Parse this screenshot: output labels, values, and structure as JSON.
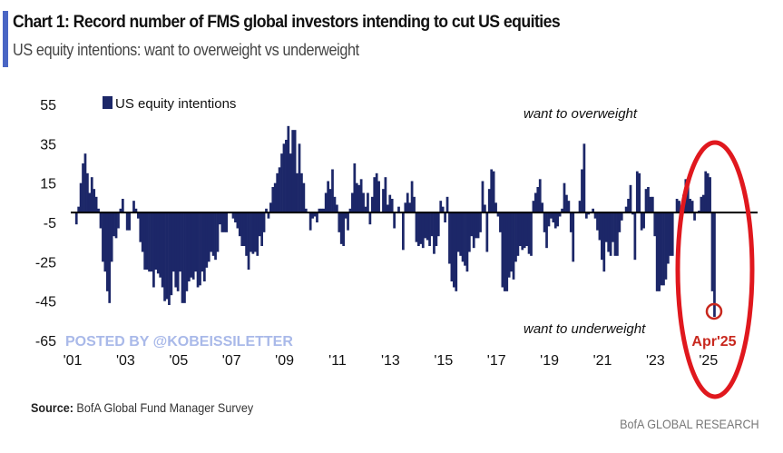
{
  "header": {
    "title": "Chart 1: Record number of FMS global investors intending to cut US equities",
    "subtitle": "US equity intentions: want to overweight vs underweight"
  },
  "footer": {
    "source_label": "Source:",
    "source_text": "BofA Global Fund Manager Survey",
    "brand": "BofA GLOBAL RESEARCH"
  },
  "watermark": "POSTED BY @KOBEISSILETTER",
  "colors": {
    "bars": "#1c2768",
    "highlight": "#e0181e",
    "accent": "#4a66c4",
    "watermark": "#a9b9e9"
  },
  "chart_data": {
    "type": "bar",
    "frequency": "monthly",
    "ylim": [
      -65,
      55
    ],
    "yticks": [
      55,
      35,
      15,
      -5,
      -25,
      -45,
      -65
    ],
    "xtick_labels": [
      "'01",
      "'03",
      "'05",
      "'07",
      "'09",
      "'11",
      "'13",
      "'15",
      "'17",
      "'19",
      "'21",
      "'23",
      "'25"
    ],
    "legend": {
      "label": "US equity intentions",
      "placement": "top-left"
    },
    "annotations": {
      "top": "want to overweight",
      "bottom": "want to underweight",
      "highlight": "Apr'25"
    },
    "series": [
      {
        "name": "US equity intentions",
        "values_by_year": {
          "2001": [
            null,
            null,
            -6,
            3,
            15,
            25,
            30,
            20,
            10,
            18,
            12,
            8
          ],
          "2002": [
            2,
            -8,
            -25,
            -30,
            -40,
            -46,
            -25,
            -12,
            -13,
            -8,
            2,
            7
          ],
          "2003": [
            0,
            -9,
            -9,
            0,
            6,
            2,
            -3,
            -15,
            -20,
            -29,
            -29,
            -30
          ],
          "2004": [
            -30,
            -38,
            -29,
            -31,
            -33,
            -38,
            -45,
            -44,
            -47,
            -42,
            -30,
            -38
          ],
          "2005": [
            -40,
            -30,
            -46,
            -46,
            -40,
            -35,
            -33,
            -34,
            -30,
            -38,
            -37,
            -30
          ],
          "2006": [
            -35,
            -28,
            -25,
            -20,
            -22,
            -24,
            -20,
            -6,
            -10,
            -10,
            -10,
            0
          ],
          "2007": [
            0,
            -3,
            -5,
            -8,
            -12,
            -17,
            -17,
            -22,
            -29,
            -20,
            -21,
            -20
          ],
          "2008": [
            -22,
            -12,
            -17,
            -10,
            2,
            -3,
            5,
            13,
            15,
            20,
            23,
            30
          ],
          "2009": [
            35,
            37,
            44,
            30,
            42,
            42,
            20,
            35,
            20,
            15,
            2,
            0
          ],
          "2010": [
            -9,
            -3,
            -2,
            -5,
            2,
            2,
            2,
            10,
            16,
            12,
            22,
            8
          ],
          "2011": [
            4,
            -10,
            -16,
            -17,
            -3,
            -9,
            2,
            10,
            25,
            15,
            14,
            17
          ],
          "2012": [
            10,
            3,
            10,
            -6,
            8,
            18,
            20,
            16,
            0,
            12,
            18,
            4
          ],
          "2013": [
            9,
            7,
            -8,
            0,
            3,
            0,
            -19,
            5,
            10,
            5,
            16,
            8
          ],
          "2014": [
            -15,
            -17,
            -16,
            -18,
            -13,
            -14,
            -17,
            -12,
            -21,
            -17,
            -12,
            6
          ],
          "2015": [
            3,
            -5,
            8,
            -26,
            -35,
            -38,
            -40,
            -20,
            -22,
            -25,
            -27,
            -30
          ],
          "2016": [
            -20,
            -12,
            -18,
            -13,
            -13,
            -10,
            16,
            4,
            -20,
            12,
            22,
            21
          ],
          "2017": [
            5,
            -2,
            -10,
            -38,
            -40,
            -40,
            -33,
            -30,
            -34,
            -25,
            -22,
            -17
          ],
          "2018": [
            -19,
            -18,
            -17,
            -21,
            -22,
            6,
            10,
            13,
            17,
            5,
            -10,
            -18
          ],
          "2019": [
            -7,
            -3,
            -5,
            -8,
            -7,
            -2,
            2,
            15,
            9,
            6,
            -10,
            -25
          ],
          "2020": [
            0,
            0,
            6,
            22,
            35,
            -3,
            -1,
            0,
            2,
            -3,
            -9,
            -14
          ],
          "2021": [
            -24,
            -30,
            -15,
            -20,
            -22,
            -15,
            -22,
            -22,
            -10,
            -4,
            0,
            3
          ],
          "2022": [
            7,
            14,
            -1,
            -24,
            21,
            20,
            -9,
            -8,
            12,
            13,
            8,
            8
          ],
          "2023": [
            -12,
            -40,
            -40,
            -37,
            -37,
            -34,
            -26,
            -22,
            -22,
            0,
            7,
            6
          ],
          "2024": [
            0,
            9,
            17,
            14,
            7,
            6,
            -4,
            0,
            1,
            8,
            9,
            21
          ],
          "2025": [
            20,
            18,
            -40,
            -53
          ]
        }
      }
    ]
  }
}
